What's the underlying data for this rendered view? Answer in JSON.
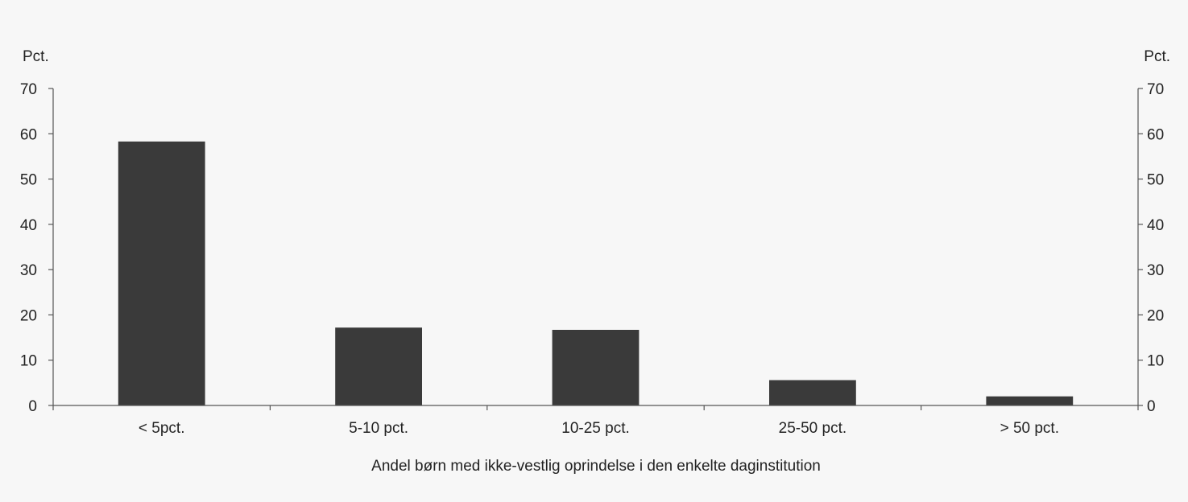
{
  "chart_data": {
    "type": "bar",
    "categories": [
      "< 5pct.",
      "5-10 pct.",
      "10-25 pct.",
      "25-50 pct.",
      "> 50 pct."
    ],
    "values": [
      58.3,
      17.2,
      16.7,
      5.6,
      2.0
    ],
    "ylim": [
      0,
      70
    ],
    "yticks": [
      0,
      10,
      20,
      30,
      40,
      50,
      60,
      70
    ],
    "ylabel_left": "Pct.",
    "ylabel_right": "Pct.",
    "xlabel": "Andel børn med ikke-vestlig oprindelse i den enkelte daginstitution",
    "grid": false,
    "colors": {
      "bar": "#3a3a3a",
      "axis": "#555555",
      "background": "#f7f7f7"
    }
  }
}
